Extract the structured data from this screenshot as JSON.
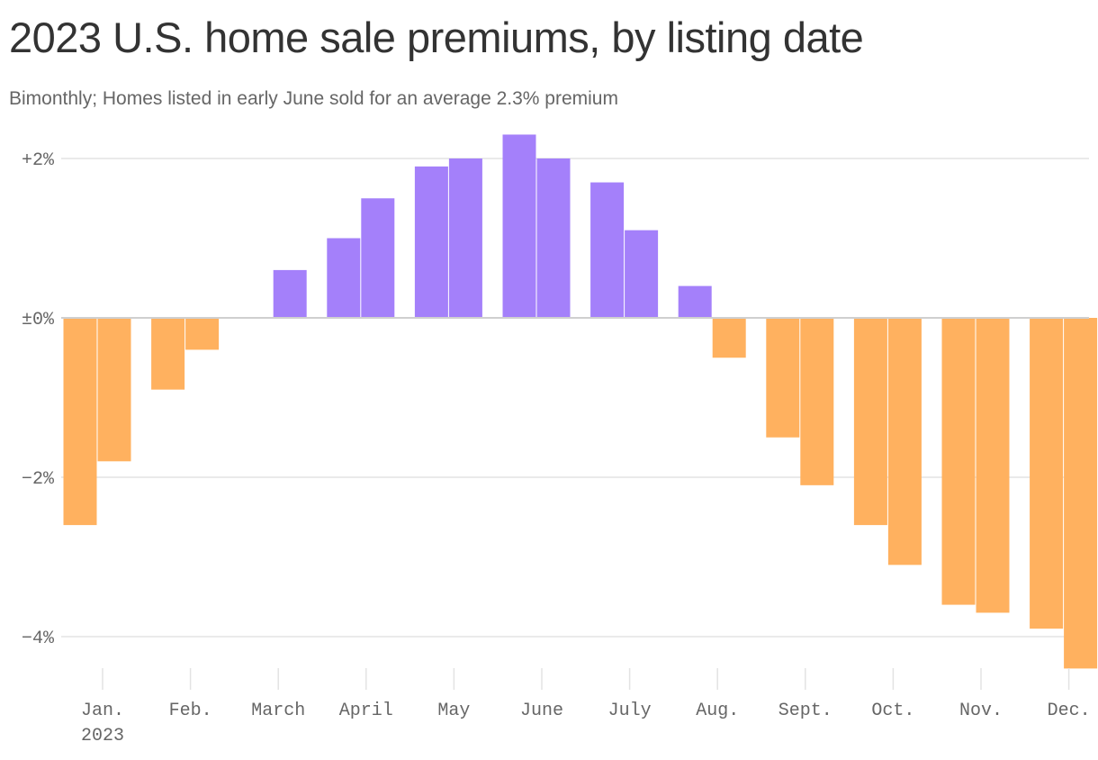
{
  "title": "2023 U.S. home sale premiums, by listing date",
  "subtitle": "Bimonthly; Homes listed in early June sold for an average 2.3% premium",
  "colors": {
    "positive": "#a480fa",
    "negative": "#ffb15f",
    "grid": "#e3e3e3",
    "zero_line": "#cfcfcf",
    "axis_text": "#666666"
  },
  "chart_data": {
    "type": "bar",
    "title": "2023 U.S. home sale premiums, by listing date",
    "subtitle": "Bimonthly; Homes listed in early June sold for an average 2.3% premium",
    "xlabel": "",
    "ylabel": "",
    "ylim": [
      -4.4,
      2.3
    ],
    "grid": true,
    "y_ticks": [
      {
        "value": 2,
        "label": "+2%"
      },
      {
        "value": 0,
        "label": "±0%"
      },
      {
        "value": -2,
        "label": "−2%"
      },
      {
        "value": -4,
        "label": "−4%"
      }
    ],
    "months": [
      {
        "label": "Jan.",
        "sublabel": "2023",
        "values": [
          -2.6,
          -1.8
        ]
      },
      {
        "label": "Feb.",
        "values": [
          -0.9,
          -0.4
        ]
      },
      {
        "label": "March",
        "values": [
          0,
          0.6
        ]
      },
      {
        "label": "April",
        "values": [
          1.0,
          1.5
        ]
      },
      {
        "label": "May",
        "values": [
          1.9,
          2.0
        ]
      },
      {
        "label": "June",
        "values": [
          2.3,
          2.0
        ]
      },
      {
        "label": "July",
        "values": [
          1.7,
          1.1
        ]
      },
      {
        "label": "Aug.",
        "values": [
          0.4,
          -0.5
        ]
      },
      {
        "label": "Sept.",
        "values": [
          -1.5,
          -2.1
        ]
      },
      {
        "label": "Oct.",
        "values": [
          -2.6,
          -3.1
        ]
      },
      {
        "label": "Nov.",
        "values": [
          -3.6,
          -3.7
        ]
      },
      {
        "label": "Dec.",
        "values": [
          -3.9,
          -4.4
        ]
      }
    ]
  }
}
